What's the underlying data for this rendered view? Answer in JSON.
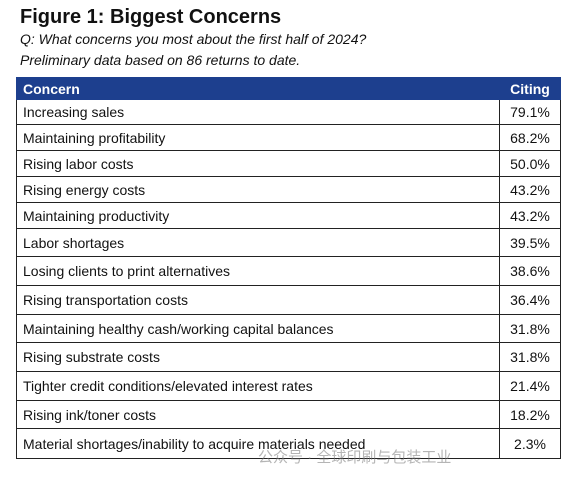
{
  "header": {
    "title": "Figure 1: Biggest Concerns",
    "question": "Q: What concerns you most about the first half of 2024?",
    "note": "Preliminary data based on 86 returns to date."
  },
  "table": {
    "columns": [
      "Concern",
      "Citing"
    ],
    "rows": [
      [
        "Increasing sales",
        "79.1%"
      ],
      [
        "Maintaining profitability",
        "68.2%"
      ],
      [
        "Rising labor costs",
        "50.0%"
      ],
      [
        "Rising energy costs",
        "43.2%"
      ],
      [
        "Maintaining productivity",
        "43.2%"
      ],
      [
        "Labor shortages",
        "39.5%"
      ],
      [
        "Losing clients to print alternatives",
        "38.6%"
      ],
      [
        "Rising transportation costs",
        "36.4%"
      ],
      [
        "Maintaining healthy cash/working capital balances",
        "31.8%"
      ],
      [
        "Rising substrate costs",
        "31.8%"
      ],
      [
        "Tighter credit conditions/elevated interest rates",
        "21.4%"
      ],
      [
        "Rising ink/toner costs",
        "18.2%"
      ],
      [
        "Material shortages/inability to acquire materials needed",
        "2.3%"
      ]
    ]
  },
  "watermark": "公众号 · 全球印刷与包装工业"
}
